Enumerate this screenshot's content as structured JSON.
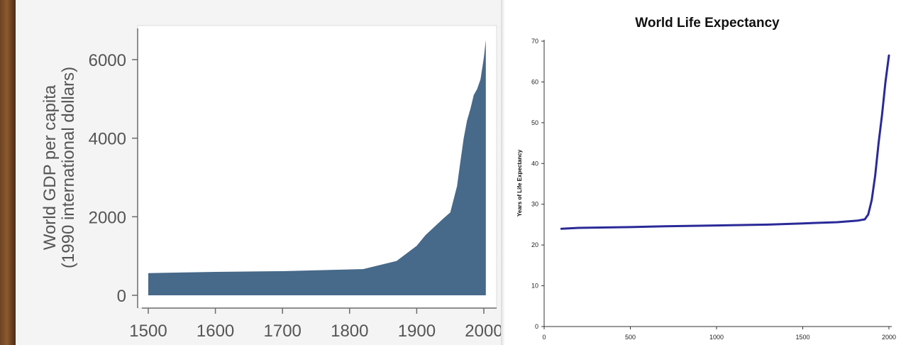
{
  "charts": {
    "gdp": {
      "color": "#47698a",
      "axis_color": "#6b6b6b",
      "ylabel_line1": "World GDP per capita",
      "ylabel_line2": "(1990 international dollars)"
    },
    "life": {
      "line_color": "#2a2a98",
      "title": "World Life Expectancy",
      "ylabel": "Years of Life Expectancy"
    }
  },
  "chart_data": [
    {
      "type": "area",
      "title": "",
      "xlabel": "",
      "ylabel": "World GDP per capita (1990 international dollars)",
      "xlim": [
        1500,
        2008
      ],
      "ylim": [
        0,
        6800
      ],
      "xticks": [
        1500,
        1600,
        1700,
        1800,
        1900,
        2000
      ],
      "yticks": [
        0,
        2000,
        4000,
        6000
      ],
      "grid": false,
      "legend": "none",
      "x": [
        1500,
        1600,
        1700,
        1820,
        1870,
        1900,
        1913,
        1940,
        1950,
        1960,
        1965,
        1970,
        1975,
        1980,
        1985,
        1990,
        1995,
        2000,
        2003
      ],
      "y": [
        566,
        596,
        615,
        667,
        875,
        1260,
        1530,
        1960,
        2110,
        2780,
        3400,
        4000,
        4450,
        4750,
        5100,
        5250,
        5500,
        6050,
        6500
      ]
    },
    {
      "type": "line",
      "title": "World Life Expectancy",
      "xlabel": "",
      "ylabel": "Years of Life Expectancy",
      "xlim": [
        0,
        2000
      ],
      "ylim": [
        0,
        70
      ],
      "xticks": [
        0,
        500,
        1000,
        1500,
        2000
      ],
      "yticks": [
        0,
        10,
        20,
        30,
        40,
        50,
        60,
        70
      ],
      "grid": false,
      "legend": "none",
      "x": [
        100,
        200,
        500,
        700,
        1000,
        1300,
        1500,
        1700,
        1820,
        1860,
        1880,
        1900,
        1920,
        1940,
        1960,
        1980,
        2000
      ],
      "y": [
        24,
        24.2,
        24.4,
        24.6,
        24.8,
        25,
        25.3,
        25.6,
        26,
        26.3,
        27.5,
        31,
        37,
        45,
        52,
        60,
        66.5
      ]
    }
  ]
}
